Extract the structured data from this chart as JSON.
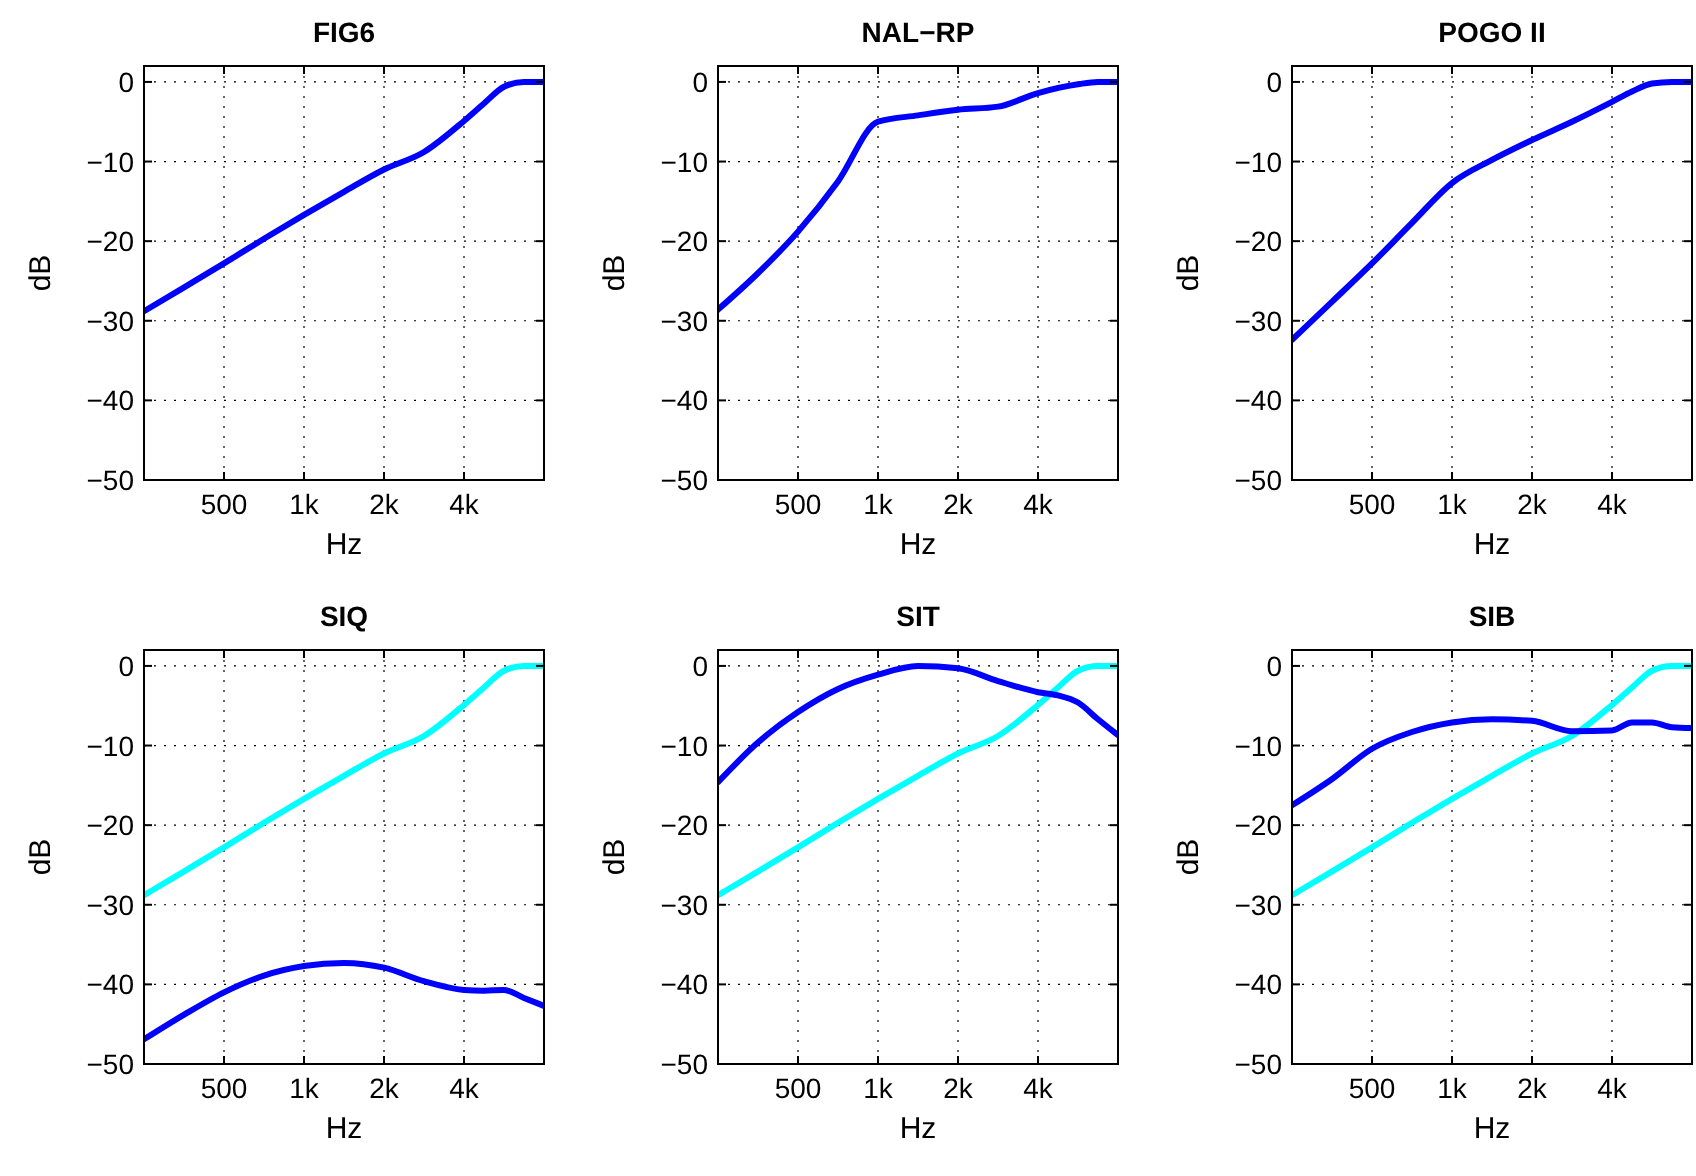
{
  "chart_data": [
    {
      "type": "line",
      "title": "FIG6",
      "xlabel": "Hz",
      "ylabel": "dB",
      "log": "x",
      "grid": true,
      "xlim": [
        250,
        8000
      ],
      "ylim": [
        -50,
        2
      ],
      "xticks": [
        {
          "value": 500,
          "label": "500"
        },
        {
          "value": 1000,
          "label": "1k"
        },
        {
          "value": 2000,
          "label": "2k"
        },
        {
          "value": 4000,
          "label": "4k"
        }
      ],
      "yticks": [
        -50,
        -40,
        -30,
        -20,
        -10,
        0
      ],
      "x": [
        250,
        354,
        500,
        707,
        1000,
        1414,
        2000,
        2828,
        4000,
        4757,
        5657,
        6727,
        8000
      ],
      "series": [
        {
          "color": "#0000ff",
          "values": [
            -28.8,
            -25.8,
            -22.8,
            -19.7,
            -16.7,
            -13.8,
            -11,
            -8.8,
            -4.9,
            -2.7,
            -0.6,
            0,
            0
          ]
        }
      ]
    },
    {
      "type": "line",
      "title": "NAL−RP",
      "xlabel": "Hz",
      "ylabel": "dB",
      "log": "x",
      "grid": true,
      "xlim": [
        250,
        8000
      ],
      "ylim": [
        -50,
        2
      ],
      "xticks": [
        {
          "value": 500,
          "label": "500"
        },
        {
          "value": 1000,
          "label": "1k"
        },
        {
          "value": 2000,
          "label": "2k"
        },
        {
          "value": 4000,
          "label": "4k"
        }
      ],
      "yticks": [
        -50,
        -40,
        -30,
        -20,
        -10,
        0
      ],
      "x": [
        250,
        354,
        500,
        707,
        1000,
        1414,
        2000,
        2828,
        4000,
        5657,
        6727,
        8000
      ],
      "series": [
        {
          "color": "#0000ff",
          "values": [
            -28.6,
            -24,
            -18.8,
            -12.5,
            -5,
            -4.2,
            -3.5,
            -3.1,
            -1.4,
            -0.3,
            0,
            0
          ]
        }
      ]
    },
    {
      "type": "line",
      "title": "POGO II",
      "xlabel": "Hz",
      "ylabel": "dB",
      "log": "x",
      "grid": true,
      "xlim": [
        250,
        8000
      ],
      "ylim": [
        -50,
        2
      ],
      "xticks": [
        {
          "value": 500,
          "label": "500"
        },
        {
          "value": 1000,
          "label": "1k"
        },
        {
          "value": 2000,
          "label": "2k"
        },
        {
          "value": 4000,
          "label": "4k"
        }
      ],
      "yticks": [
        -50,
        -40,
        -30,
        -20,
        -10,
        0
      ],
      "x": [
        250,
        354,
        500,
        707,
        1000,
        1414,
        2000,
        2828,
        4000,
        4757,
        5657,
        6727,
        8000
      ],
      "series": [
        {
          "color": "#0000ff",
          "values": [
            -32.4,
            -27.6,
            -22.8,
            -17.7,
            -12.7,
            -9.8,
            -7.3,
            -5,
            -2.5,
            -1.2,
            -0.2,
            0,
            0
          ]
        }
      ]
    },
    {
      "type": "line",
      "title": "SIQ",
      "xlabel": "Hz",
      "ylabel": "dB",
      "log": "x",
      "grid": true,
      "xlim": [
        250,
        8000
      ],
      "ylim": [
        -50,
        2
      ],
      "xticks": [
        {
          "value": 500,
          "label": "500"
        },
        {
          "value": 1000,
          "label": "1k"
        },
        {
          "value": 2000,
          "label": "2k"
        },
        {
          "value": 4000,
          "label": "4k"
        }
      ],
      "yticks": [
        -50,
        -40,
        -30,
        -20,
        -10,
        0
      ],
      "x": [
        250,
        354,
        500,
        707,
        1000,
        1414,
        2000,
        2828,
        4000,
        4757,
        5657,
        6727,
        8000
      ],
      "series": [
        {
          "color": "#00ffff",
          "values": [
            -28.8,
            -25.8,
            -22.8,
            -19.7,
            -16.7,
            -13.8,
            -11,
            -8.8,
            -4.9,
            -2.7,
            -0.6,
            0,
            0
          ]
        },
        {
          "color": "#0000ff",
          "values": [
            -46.9,
            -43.8,
            -41,
            -38.9,
            -37.7,
            -37.3,
            -37.9,
            -39.6,
            -40.7,
            -40.8,
            -40.7,
            -41.7,
            -42.7
          ]
        }
      ]
    },
    {
      "type": "line",
      "title": "SIT",
      "xlabel": "Hz",
      "ylabel": "dB",
      "log": "x",
      "grid": true,
      "xlim": [
        250,
        8000
      ],
      "ylim": [
        -50,
        2
      ],
      "xticks": [
        {
          "value": 500,
          "label": "500"
        },
        {
          "value": 1000,
          "label": "1k"
        },
        {
          "value": 2000,
          "label": "2k"
        },
        {
          "value": 4000,
          "label": "4k"
        }
      ],
      "yticks": [
        -50,
        -40,
        -30,
        -20,
        -10,
        0
      ],
      "x": [
        250,
        354,
        500,
        707,
        1000,
        1414,
        2000,
        2828,
        4000,
        4757,
        5657,
        6727,
        8000
      ],
      "series": [
        {
          "color": "#00ffff",
          "values": [
            -28.8,
            -25.8,
            -22.8,
            -19.7,
            -16.7,
            -13.8,
            -11,
            -8.8,
            -4.9,
            -2.7,
            -0.6,
            0,
            0
          ]
        },
        {
          "color": "#0000ff",
          "values": [
            -14.6,
            -9.6,
            -5.8,
            -2.9,
            -1.1,
            0,
            -0.3,
            -1.9,
            -3.3,
            -3.7,
            -4.6,
            -6.7,
            -8.7
          ]
        }
      ]
    },
    {
      "type": "line",
      "title": "SIB",
      "xlabel": "Hz",
      "ylabel": "dB",
      "log": "x",
      "grid": true,
      "xlim": [
        250,
        8000
      ],
      "ylim": [
        -50,
        2
      ],
      "xticks": [
        {
          "value": 500,
          "label": "500"
        },
        {
          "value": 1000,
          "label": "1k"
        },
        {
          "value": 2000,
          "label": "2k"
        },
        {
          "value": 4000,
          "label": "4k"
        }
      ],
      "yticks": [
        -50,
        -40,
        -30,
        -20,
        -10,
        0
      ],
      "x": [
        250,
        354,
        500,
        707,
        1000,
        1414,
        2000,
        2828,
        4000,
        4757,
        5657,
        6727,
        8000
      ],
      "series": [
        {
          "color": "#00ffff",
          "values": [
            -28.8,
            -25.8,
            -22.8,
            -19.7,
            -16.7,
            -13.8,
            -11,
            -8.8,
            -4.9,
            -2.7,
            -0.6,
            0,
            0
          ]
        },
        {
          "color": "#0000ff",
          "values": [
            -17.5,
            -14.2,
            -10.4,
            -8.3,
            -7.1,
            -6.7,
            -6.9,
            -8.2,
            -8.1,
            -7.1,
            -7.1,
            -7.7,
            -7.8
          ]
        }
      ]
    }
  ]
}
